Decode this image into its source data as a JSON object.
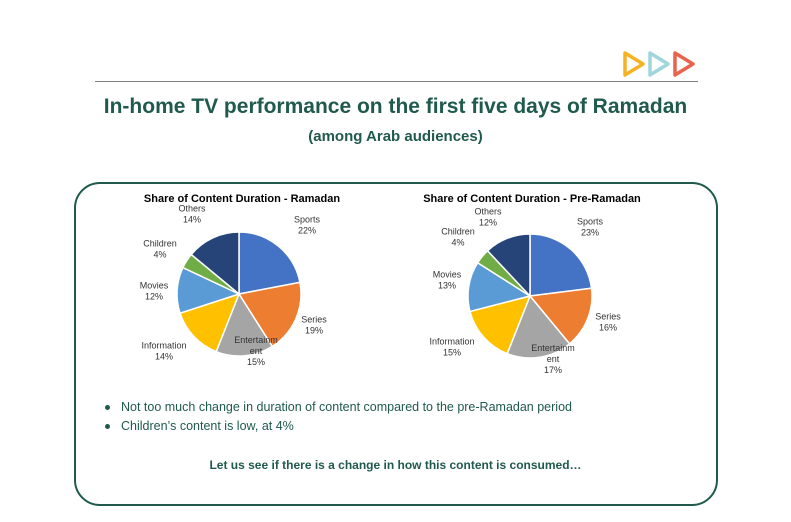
{
  "header": {
    "title": "In-home TV performance on the first five days of Ramadan",
    "subtitle": "(among Arab audiences)"
  },
  "logo": {
    "icon": "triple-play-arrows-logo",
    "colors": [
      "#f5b324",
      "#9fd6de",
      "#e8634b"
    ]
  },
  "chart_data": [
    {
      "type": "pie",
      "title": "Share of Content Duration - Ramadan",
      "categories": [
        "Sports",
        "Series",
        "Entertainment",
        "Information",
        "Movies",
        "Children",
        "Others"
      ],
      "labels": [
        [
          "Sports",
          "22%"
        ],
        [
          "Series",
          "19%"
        ],
        [
          "Entertainm",
          "ent",
          "15%"
        ],
        [
          "Information",
          "14%"
        ],
        [
          "Movies",
          "12%"
        ],
        [
          "Children",
          "4%"
        ],
        [
          "Others",
          "14%"
        ]
      ],
      "values": [
        22,
        19,
        15,
        14,
        12,
        4,
        14
      ],
      "colors": [
        "#4472c4",
        "#ed7d31",
        "#a5a5a5",
        "#ffc000",
        "#5b9bd5",
        "#70ad47",
        "#264478"
      ]
    },
    {
      "type": "pie",
      "title": "Share of Content Duration - Pre-Ramadan",
      "categories": [
        "Sports",
        "Series",
        "Entertainment",
        "Information",
        "Movies",
        "Children",
        "Others"
      ],
      "labels": [
        [
          "Sports",
          "23%"
        ],
        [
          "Series",
          "16%"
        ],
        [
          "Entertainm",
          "ent",
          "17%"
        ],
        [
          "Information",
          "15%"
        ],
        [
          "Movies",
          "13%"
        ],
        [
          "Children",
          "4%"
        ],
        [
          "Others",
          "12%"
        ]
      ],
      "values": [
        23,
        16,
        17,
        15,
        13,
        4,
        12
      ],
      "colors": [
        "#4472c4",
        "#ed7d31",
        "#a5a5a5",
        "#ffc000",
        "#5b9bd5",
        "#70ad47",
        "#264478"
      ]
    }
  ],
  "bullets": [
    "Not too much change in duration of content compared to the pre-Ramadan period",
    "Children’s content is low, at 4%"
  ],
  "footer": "Let us see if there is a change in how this content is consumed…",
  "colors": {
    "accent": "#1f5a4c",
    "rule": "#7f7f7f"
  }
}
